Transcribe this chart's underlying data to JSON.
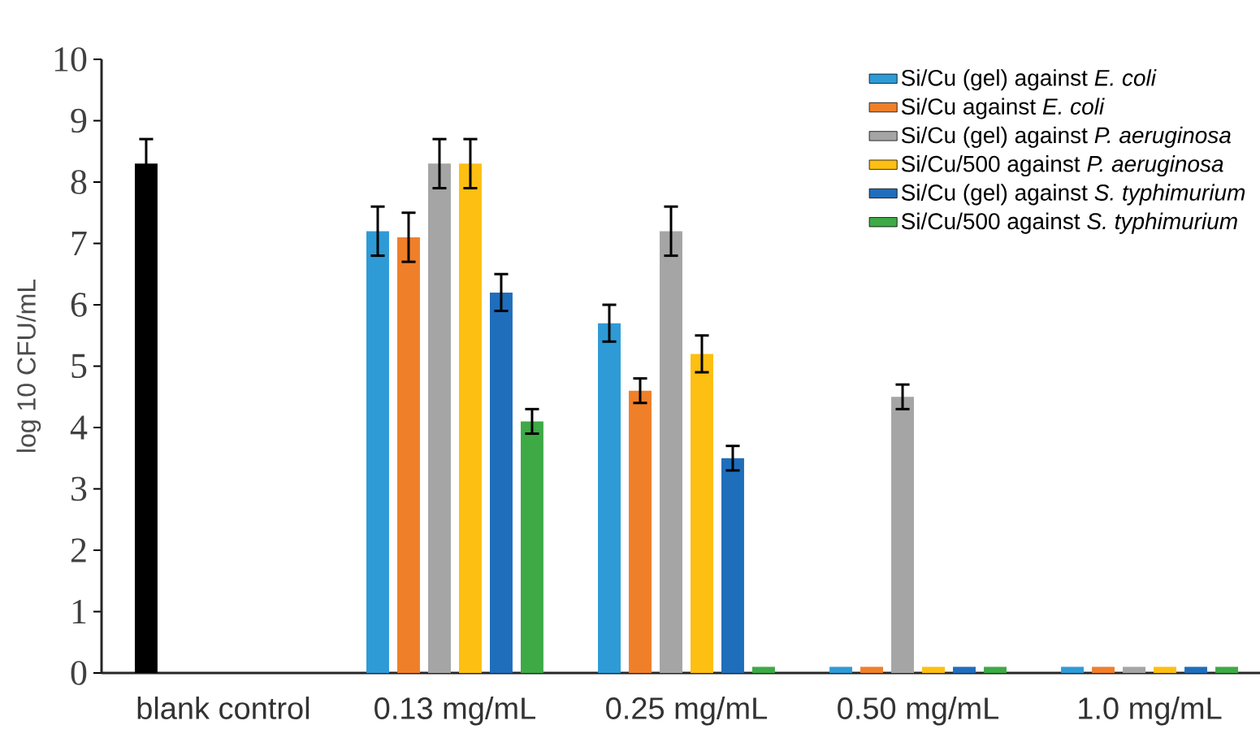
{
  "chart_data": {
    "type": "bar",
    "ylabel": "log 10 CFU/mL",
    "categories": [
      "blank control",
      "0.13 mg/mL",
      "0.25 mg/mL",
      "0.50 mg/mL",
      "1.0 mg/mL"
    ],
    "series": [
      {
        "name": "Si/Cu (gel) against *E. coli*",
        "color": "#2e9bd6",
        "values": [
          null,
          7.2,
          5.7,
          0.1,
          0.1
        ],
        "errors": [
          null,
          0.4,
          0.3,
          null,
          null
        ]
      },
      {
        "name": "Si/Cu against *E. coli*",
        "color": "#f07f2a",
        "values": [
          null,
          7.1,
          4.6,
          0.1,
          0.1
        ],
        "errors": [
          null,
          0.4,
          0.2,
          null,
          null
        ]
      },
      {
        "name": "Si/Cu (gel) against *P. aeruginosa*",
        "color": "#a5a5a5",
        "values": [
          null,
          8.3,
          7.2,
          4.5,
          0.1
        ],
        "errors": [
          null,
          0.4,
          0.4,
          0.2,
          null
        ]
      },
      {
        "name": "Si/Cu/500 against *P. aeruginosa*",
        "color": "#fdbf12",
        "values": [
          null,
          8.3,
          5.2,
          0.1,
          0.1
        ],
        "errors": [
          null,
          0.4,
          0.3,
          null,
          null
        ]
      },
      {
        "name": "Si/Cu (gel) against *S. typhimurium*",
        "color": "#1f6ebc",
        "values": [
          null,
          6.2,
          3.5,
          0.1,
          0.1
        ],
        "errors": [
          null,
          0.3,
          0.2,
          null,
          null
        ]
      },
      {
        "name": "Si/Cu/500 against *S. typhimurium*",
        "color": "#3daa46",
        "values": [
          null,
          4.1,
          0.1,
          0.1,
          0.1
        ],
        "errors": [
          null,
          0.2,
          null,
          null,
          null
        ]
      },
      {
        "color": "#000000",
        "values": [
          8.3,
          null,
          null,
          null,
          null
        ],
        "errors": [
          0.4,
          null,
          null,
          null,
          null
        ]
      }
    ],
    "ylim": [
      0,
      10
    ],
    "yticks": [
      0,
      1,
      2,
      3,
      4,
      5,
      6,
      7,
      8,
      9,
      10
    ],
    "legend": "top right"
  }
}
